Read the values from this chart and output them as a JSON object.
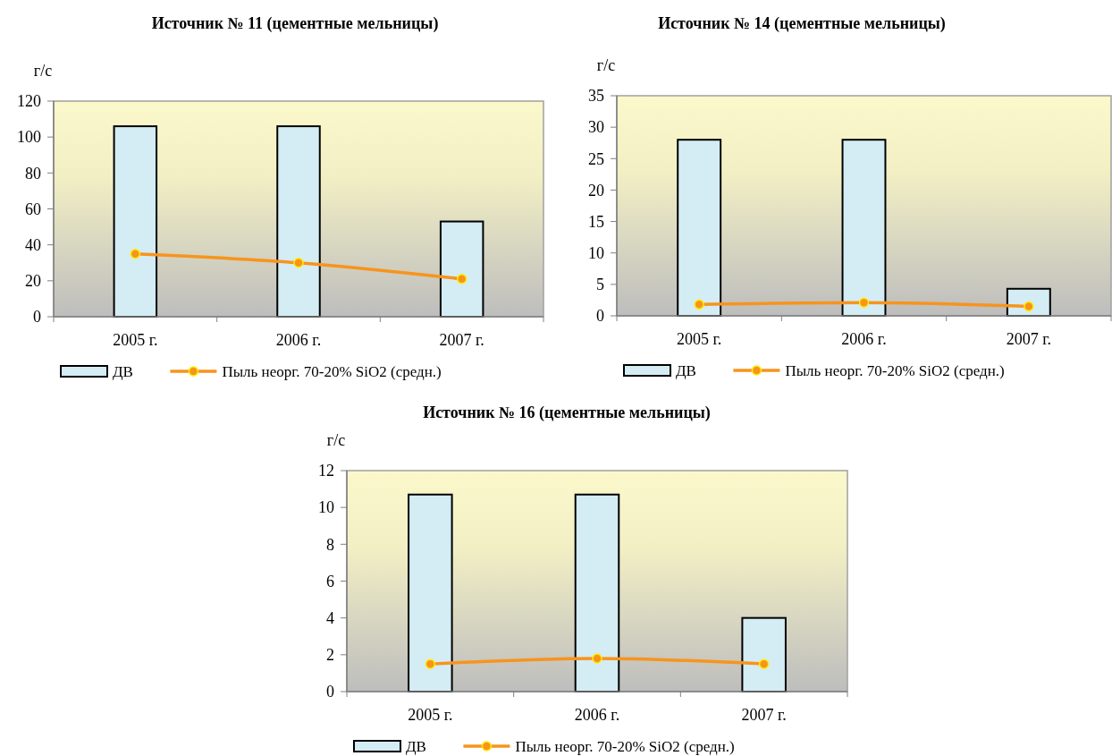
{
  "chart_data": [
    {
      "type": "bar",
      "title": "Источник № 11 (цементные мельницы)",
      "ylabel": "г/с",
      "categories": [
        "2005 г.",
        "2006 г.",
        "2007 г."
      ],
      "series": [
        {
          "name": "ДВ",
          "color": "#d4ecf4",
          "values": [
            106,
            106,
            53
          ]
        },
        {
          "name": "Пыль неорг. 70-20% SiO2 (средн.)",
          "type": "line",
          "color": "#f7941d",
          "values": [
            35,
            30,
            21
          ]
        }
      ],
      "ylim": [
        0,
        120
      ],
      "yticks": [
        0,
        20,
        40,
        60,
        80,
        100,
        120
      ],
      "grid": false,
      "legend": "bottom",
      "marker": "circle",
      "line_style": "solid"
    },
    {
      "type": "bar",
      "title": "Источник № 14 (цементные мельницы)",
      "ylabel": "г/с",
      "categories": [
        "2005 г.",
        "2006 г.",
        "2007 г."
      ],
      "series": [
        {
          "name": "ДВ",
          "color": "#d4ecf4",
          "values": [
            28,
            28,
            4.3
          ]
        },
        {
          "name": "Пыль неорг. 70-20% SiO2 (средн.)",
          "type": "line",
          "color": "#f7941d",
          "values": [
            1.8,
            2.1,
            1.5
          ]
        }
      ],
      "ylim": [
        0,
        35
      ],
      "yticks": [
        0,
        5,
        10,
        15,
        20,
        25,
        30,
        35
      ],
      "grid": false,
      "legend": "bottom",
      "marker": "circle",
      "line_style": "solid"
    },
    {
      "type": "bar",
      "title": "Источник № 16 (цементные мельницы)",
      "ylabel": "г/с",
      "categories": [
        "2005 г.",
        "2006 г.",
        "2007 г."
      ],
      "series": [
        {
          "name": "ДВ",
          "color": "#d4ecf4",
          "values": [
            10.7,
            10.7,
            4
          ]
        },
        {
          "name": "Пыль неорг. 70-20% SiO2 (средн.)",
          "type": "line",
          "color": "#f7941d",
          "values": [
            1.5,
            1.8,
            1.5
          ]
        }
      ],
      "ylim": [
        0,
        12
      ],
      "yticks": [
        0,
        2,
        4,
        6,
        8,
        10,
        12
      ],
      "grid": false,
      "legend": "bottom",
      "marker": "circle",
      "line_style": "solid"
    }
  ]
}
